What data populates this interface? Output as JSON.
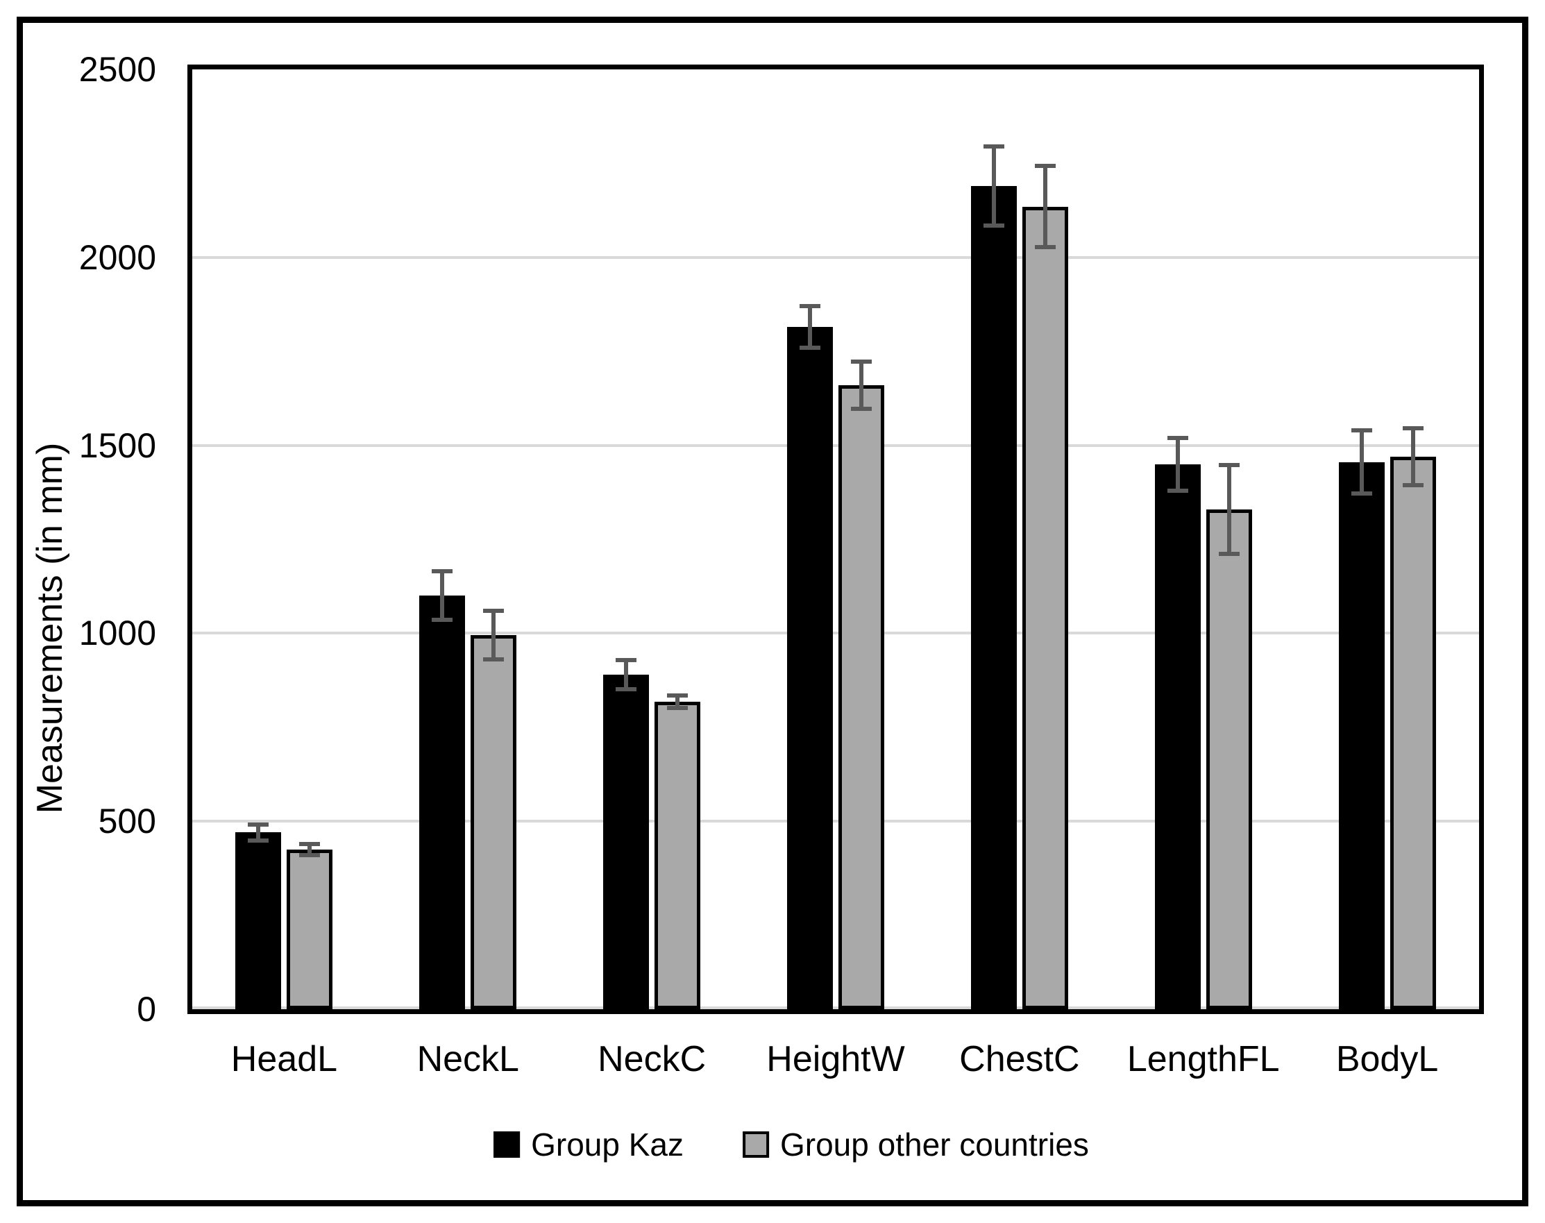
{
  "chart_data": {
    "type": "bar",
    "title": "",
    "xlabel": "",
    "ylabel": "Measurements (in mm)",
    "categories": [
      "HeadL",
      "NeckL",
      "NeckC",
      "HeightW",
      "ChestC",
      "LengthFL",
      "BodyL"
    ],
    "series": [
      {
        "name": "Group Kaz",
        "color": "#000000",
        "values": [
          470,
          1100,
          890,
          1815,
          2190,
          1450,
          1455
        ],
        "errors": [
          22,
          65,
          38,
          55,
          105,
          70,
          84
        ]
      },
      {
        "name": "Group other countries",
        "color": "#a9a9a9",
        "values": [
          425,
          995,
          818,
          1660,
          2135,
          1330,
          1470
        ],
        "errors": [
          15,
          65,
          17,
          62,
          108,
          118,
          76
        ]
      }
    ],
    "ylim": [
      0,
      2500
    ],
    "yticks": [
      0,
      500,
      1000,
      1500,
      2000,
      2500
    ],
    "grid": true,
    "gridline_color": "#d9d9d9",
    "error_bar_color": "#595959",
    "bar_border_color": "#000000",
    "legend_position": "bottom"
  }
}
